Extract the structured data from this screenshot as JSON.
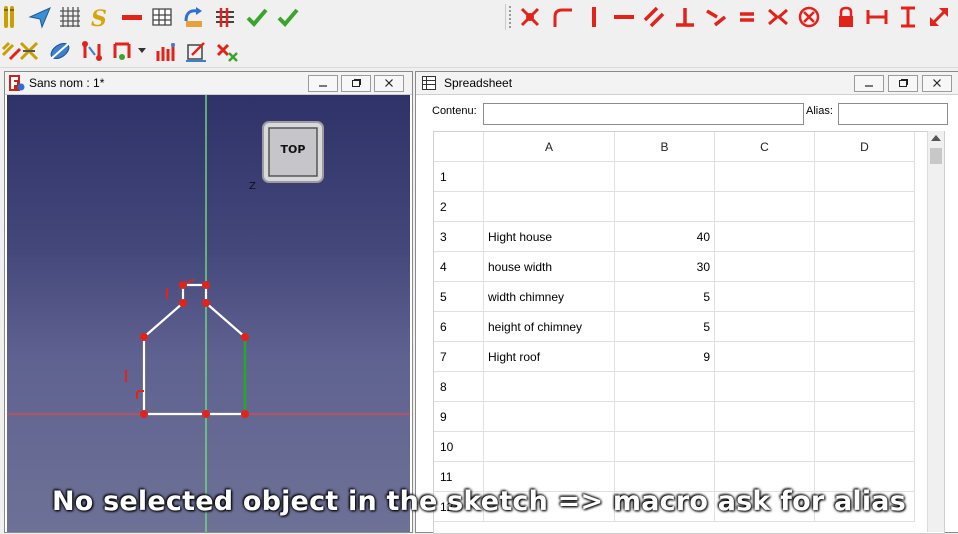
{
  "colors": {
    "sketch_red": "#e2231a",
    "check_green": "#3aa52d",
    "viewport_top": "#2f3268",
    "viewport_bottom": "#6e7196"
  },
  "toolbar_top": {
    "icons": [
      "draft-snap-icon",
      "navigate-icon",
      "grid-icon",
      "macro-s-icon",
      "line-icon",
      "mesh-icon",
      "undo-icon",
      "constraint-list-icon",
      "check-icon",
      "check-all-icon",
      "point-coincident-icon",
      "fillet-icon",
      "vertical-icon",
      "horizontal-icon",
      "parallel-icon",
      "perpendicular-icon",
      "tangent-icon",
      "equal-icon",
      "symmetric-icon",
      "block-icon",
      "lock-icon",
      "horizontal-distance-icon",
      "vertical-distance-icon",
      "distance-icon"
    ]
  },
  "toolbar_second": {
    "icons": [
      "select-constraints-icon",
      "select-origin-icon",
      "construction-icon",
      "clone-icon",
      "copy-icon",
      "dropdown-arrow-icon",
      "rectangular-array-icon",
      "scale-icon",
      "delete-constraints-icon"
    ]
  },
  "view_window": {
    "title": "Sans nom : 1*",
    "navcube_face": "TOP",
    "axis_label": "Z",
    "buttons": [
      "minimize",
      "restore",
      "close"
    ]
  },
  "spreadsheet_window": {
    "title": "Spreadsheet",
    "contents_label": "Contenu:",
    "contents_value": "",
    "alias_label": "Alias:",
    "alias_value": "",
    "buttons": [
      "minimize",
      "restore",
      "close"
    ],
    "columns": [
      "A",
      "B",
      "C",
      "D"
    ],
    "rows": [
      {
        "num": "1",
        "a": "",
        "b": ""
      },
      {
        "num": "2",
        "a": "",
        "b": ""
      },
      {
        "num": "3",
        "a": "Hight house",
        "b": "40"
      },
      {
        "num": "4",
        "a": "house width",
        "b": "30"
      },
      {
        "num": "5",
        "a": "width chimney",
        "b": "5"
      },
      {
        "num": "6",
        "a": "height of chimney",
        "b": "5"
      },
      {
        "num": "7",
        "a": "Hight roof",
        "b": "9"
      },
      {
        "num": "8",
        "a": "",
        "b": ""
      },
      {
        "num": "9",
        "a": "",
        "b": ""
      },
      {
        "num": "10",
        "a": "",
        "b": ""
      },
      {
        "num": "11",
        "a": "",
        "b": ""
      },
      {
        "num": "12",
        "a": "",
        "b": ""
      }
    ]
  },
  "caption": "No selected object in the sketch => macro ask for alias"
}
